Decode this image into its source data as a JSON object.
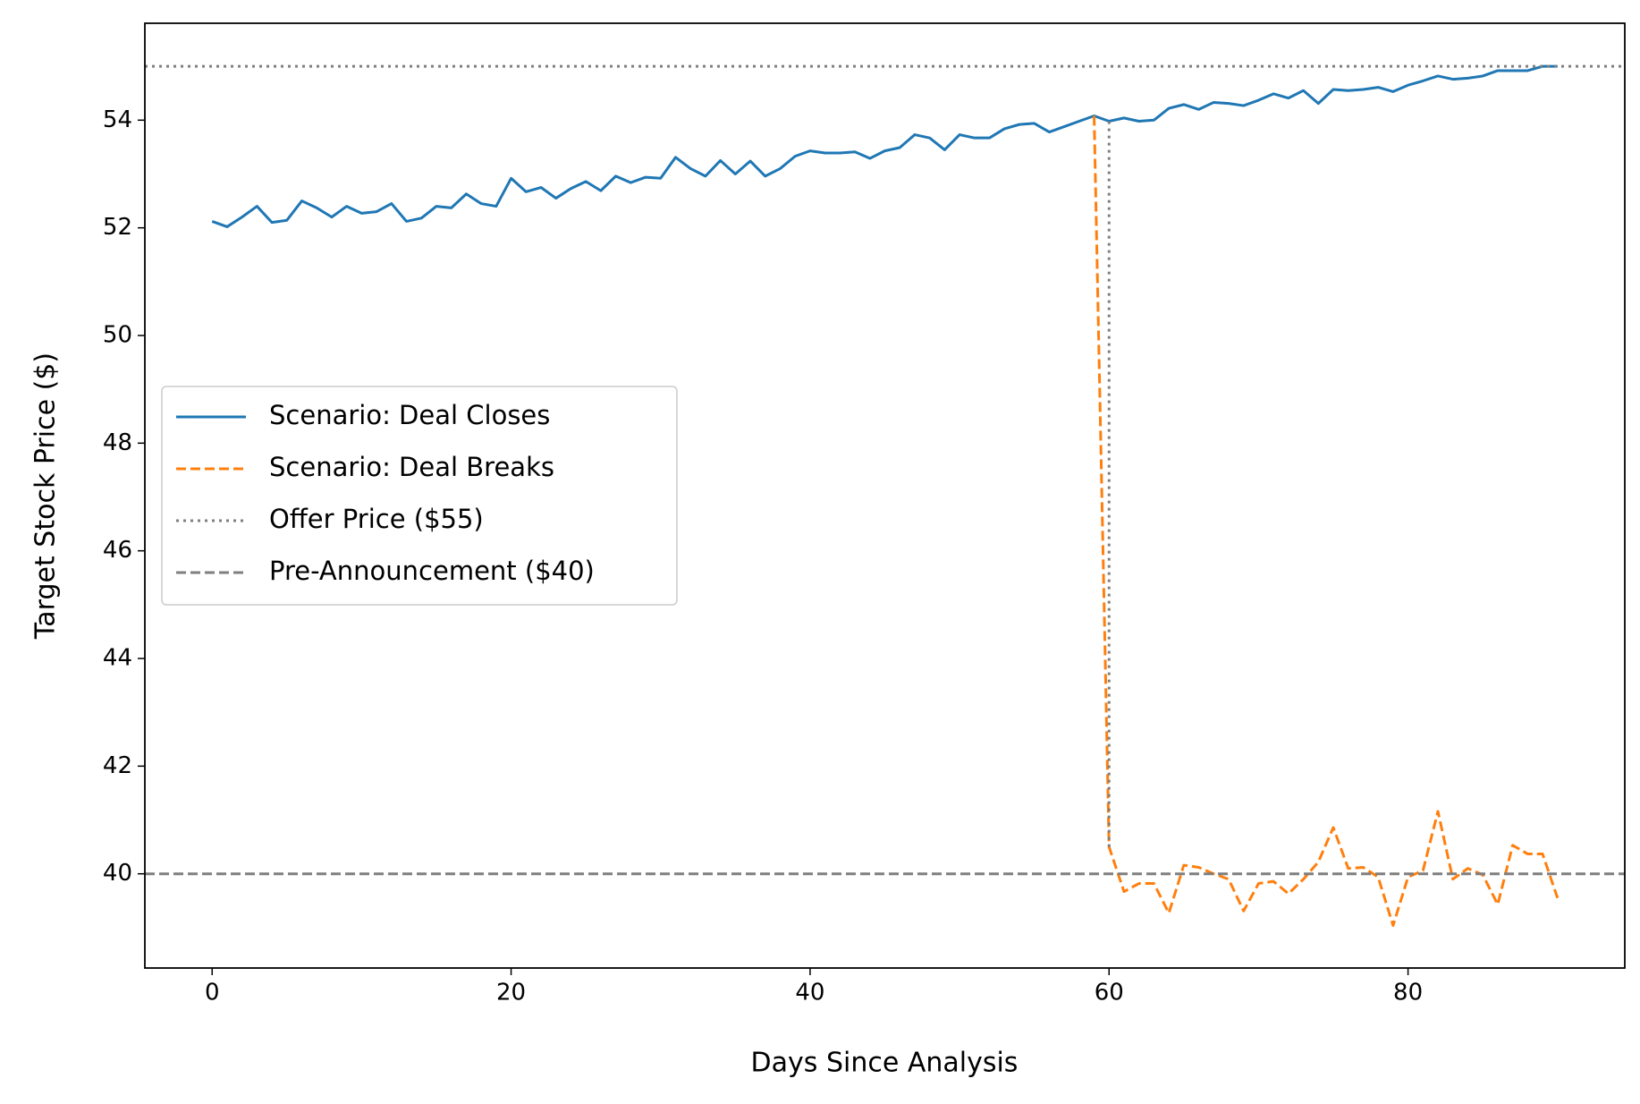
{
  "chart_data": {
    "type": "line",
    "xlabel": "Days Since Analysis",
    "ylabel": "Target Stock Price ($)",
    "xlim": [
      -4.5,
      94.5
    ],
    "ylim": [
      38.25,
      55.8
    ],
    "xticks": [
      0,
      20,
      40,
      60,
      80
    ],
    "yticks": [
      40,
      42,
      44,
      46,
      48,
      50,
      52,
      54
    ],
    "legend": "center left",
    "series": [
      {
        "name": "Scenario: Deal Closes",
        "color": "#1f77b4",
        "style": "solid",
        "x": [
          0,
          1,
          2,
          3,
          4,
          5,
          6,
          7,
          8,
          9,
          10,
          11,
          12,
          13,
          14,
          15,
          16,
          17,
          18,
          19,
          20,
          21,
          22,
          23,
          24,
          25,
          26,
          27,
          28,
          29,
          30,
          31,
          32,
          33,
          34,
          35,
          36,
          37,
          38,
          39,
          40,
          41,
          42,
          43,
          44,
          45,
          46,
          47,
          48,
          49,
          50,
          51,
          52,
          53,
          54,
          55,
          56,
          57,
          58,
          59,
          60,
          61,
          62,
          63,
          64,
          65,
          66,
          67,
          68,
          69,
          70,
          71,
          72,
          73,
          74,
          75,
          76,
          77,
          78,
          79,
          80,
          81,
          82,
          83,
          84,
          85,
          86,
          87,
          88,
          89,
          90
        ],
        "values": [
          52.12,
          52.02,
          52.2,
          52.4,
          52.1,
          52.14,
          52.5,
          52.37,
          52.2,
          52.4,
          52.27,
          52.3,
          52.45,
          52.12,
          52.18,
          52.4,
          52.37,
          52.63,
          52.45,
          52.4,
          52.92,
          52.67,
          52.75,
          52.55,
          52.73,
          52.86,
          52.69,
          52.96,
          52.84,
          52.94,
          52.92,
          53.31,
          53.1,
          52.96,
          53.25,
          53.0,
          53.24,
          52.96,
          53.1,
          53.33,
          53.43,
          53.39,
          53.39,
          53.41,
          53.29,
          53.43,
          53.49,
          53.73,
          53.67,
          53.45,
          53.73,
          53.67,
          53.67,
          53.84,
          53.92,
          53.94,
          53.78,
          53.88,
          53.98,
          54.08,
          53.98,
          54.04,
          53.98,
          54.0,
          54.22,
          54.29,
          54.2,
          54.33,
          54.31,
          54.27,
          54.37,
          54.49,
          54.41,
          54.55,
          54.31,
          54.57,
          54.55,
          54.57,
          54.61,
          54.53,
          54.65,
          54.73,
          54.82,
          54.76,
          54.78,
          54.82,
          54.92,
          54.92,
          54.92,
          55.0,
          55.0
        ]
      },
      {
        "name": "Scenario: Deal Breaks",
        "color": "#ff7f0e",
        "style": "dashed",
        "x": [
          59,
          60,
          61,
          62,
          63,
          64,
          65,
          66,
          67,
          68,
          69,
          70,
          71,
          72,
          73,
          74,
          75,
          76,
          77,
          78,
          79,
          80,
          81,
          82,
          83,
          84,
          85,
          86,
          87,
          88,
          89,
          90
        ],
        "values": [
          54.08,
          40.5,
          39.67,
          39.82,
          39.82,
          39.27,
          40.16,
          40.12,
          40.0,
          39.9,
          39.31,
          39.82,
          39.86,
          39.63,
          39.9,
          40.22,
          40.86,
          40.1,
          40.12,
          39.94,
          39.04,
          39.94,
          40.06,
          41.16,
          39.9,
          40.1,
          39.98,
          39.43,
          40.53,
          40.37,
          40.37,
          39.55
        ]
      },
      {
        "name": "Offer Price ($55)",
        "color": "#7f7f7f",
        "style": "dotted",
        "hline": 55
      },
      {
        "name": "Pre-Announcement ($40)",
        "color": "#7f7f7f",
        "style": "dashed",
        "hline": 40
      }
    ],
    "vlines": [
      {
        "x": 60,
        "ymin": 40.5,
        "ymax": 54,
        "color": "#7f7f7f",
        "style": "dotted"
      }
    ]
  }
}
